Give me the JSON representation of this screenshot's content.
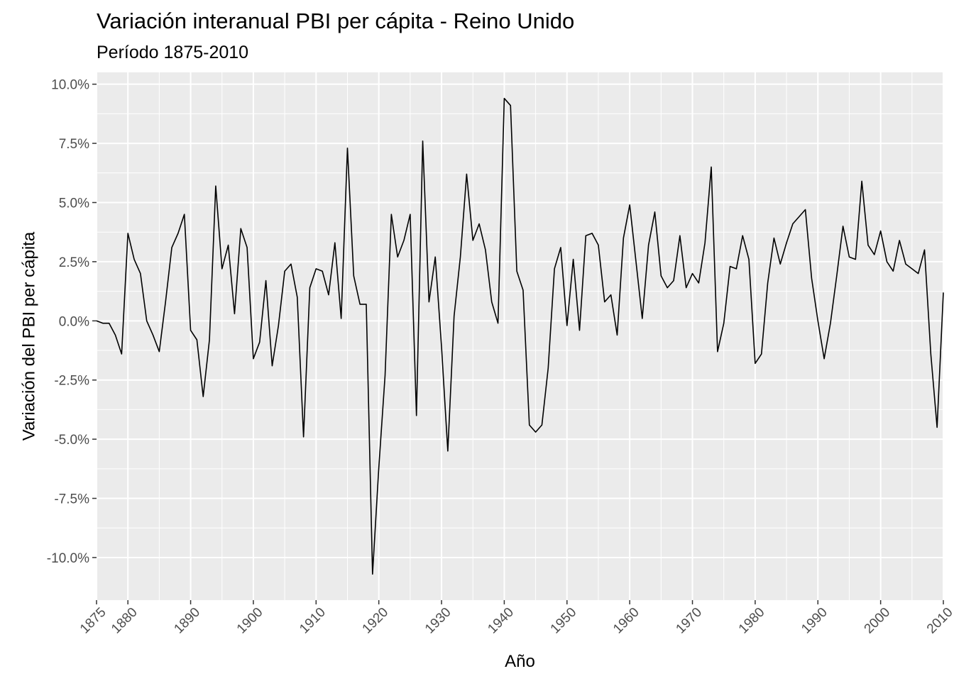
{
  "chart_data": {
    "type": "line",
    "title": "Variación interanual PBI per cápita - Reino Unido",
    "subtitle": "Período 1875-2010",
    "xlabel": "Año",
    "ylabel": "Variación del PBI per cápita",
    "xlim": [
      1875,
      2010
    ],
    "ylim": [
      -11.8,
      10.5
    ],
    "x_ticks": [
      1875,
      1880,
      1890,
      1900,
      1910,
      1920,
      1930,
      1940,
      1950,
      1960,
      1970,
      1980,
      1990,
      2000,
      2010
    ],
    "y_ticks": [
      10.0,
      7.5,
      5.0,
      2.5,
      0.0,
      -2.5,
      -5.0,
      -7.5,
      -10.0
    ],
    "y_tick_labels": [
      "10.0%",
      "7.5%",
      "5.0%",
      "2.5%",
      "0.0%",
      "-2.5%",
      "-5.0%",
      "-7.5%",
      "-10.0%"
    ],
    "grid": true,
    "line_color": "#000000",
    "panel_color": "#ebebeb",
    "grid_color": "#ffffff",
    "x": [
      1875,
      1876,
      1877,
      1878,
      1879,
      1880,
      1881,
      1882,
      1883,
      1884,
      1885,
      1886,
      1887,
      1888,
      1889,
      1890,
      1891,
      1892,
      1893,
      1894,
      1895,
      1896,
      1897,
      1898,
      1899,
      1900,
      1901,
      1902,
      1903,
      1904,
      1905,
      1906,
      1907,
      1908,
      1909,
      1910,
      1911,
      1912,
      1913,
      1914,
      1915,
      1916,
      1917,
      1918,
      1919,
      1920,
      1921,
      1922,
      1923,
      1924,
      1925,
      1926,
      1927,
      1928,
      1929,
      1930,
      1931,
      1932,
      1933,
      1934,
      1935,
      1936,
      1937,
      1938,
      1939,
      1940,
      1941,
      1942,
      1943,
      1944,
      1945,
      1946,
      1947,
      1948,
      1949,
      1950,
      1951,
      1952,
      1953,
      1954,
      1955,
      1956,
      1957,
      1958,
      1959,
      1960,
      1961,
      1962,
      1963,
      1964,
      1965,
      1966,
      1967,
      1968,
      1969,
      1970,
      1971,
      1972,
      1973,
      1974,
      1975,
      1976,
      1977,
      1978,
      1979,
      1980,
      1981,
      1982,
      1983,
      1984,
      1985,
      1986,
      1987,
      1988,
      1989,
      1990,
      1991,
      1992,
      1993,
      1994,
      1995,
      1996,
      1997,
      1998,
      1999,
      2000,
      2001,
      2002,
      2003,
      2004,
      2005,
      2006,
      2007,
      2008,
      2009,
      2010
    ],
    "values": [
      0.0,
      -0.1,
      -0.1,
      -0.6,
      -1.4,
      3.7,
      2.6,
      2.0,
      0.0,
      -0.6,
      -1.3,
      0.8,
      3.1,
      3.7,
      4.5,
      -0.4,
      -0.8,
      -3.2,
      -0.8,
      5.7,
      2.2,
      3.2,
      0.3,
      3.9,
      3.1,
      -1.6,
      -0.9,
      1.7,
      -1.9,
      -0.2,
      2.1,
      2.4,
      1.0,
      -4.9,
      1.4,
      2.2,
      2.1,
      1.1,
      3.3,
      0.1,
      7.3,
      1.9,
      0.7,
      0.7,
      -10.7,
      -6.2,
      -2.3,
      4.5,
      2.7,
      3.4,
      4.5,
      -4.0,
      7.6,
      0.8,
      2.7,
      -1.1,
      -5.5,
      0.2,
      2.7,
      6.2,
      3.4,
      4.1,
      3.0,
      0.8,
      -0.1,
      9.4,
      9.1,
      2.1,
      1.3,
      -4.4,
      -4.7,
      -4.4,
      -2.0,
      2.2,
      3.1,
      -0.2,
      2.6,
      -0.4,
      3.6,
      3.7,
      3.2,
      0.8,
      1.1,
      -0.6,
      3.5,
      4.9,
      2.5,
      0.1,
      3.2,
      4.6,
      1.9,
      1.4,
      1.7,
      3.6,
      1.4,
      2.0,
      1.6,
      3.3,
      6.5,
      -1.3,
      -0.1,
      2.3,
      2.2,
      3.6,
      2.6,
      -1.8,
      -1.4,
      1.6,
      3.5,
      2.4,
      3.3,
      4.1,
      4.4,
      4.7,
      1.8,
      0.0,
      -1.6,
      -0.1,
      1.9,
      4.0,
      2.7,
      2.6,
      5.9,
      3.2,
      2.8,
      3.8,
      2.5,
      2.1,
      3.4,
      2.4,
      2.2,
      2.0,
      3.0,
      -1.4,
      -4.5,
      1.2
    ]
  }
}
